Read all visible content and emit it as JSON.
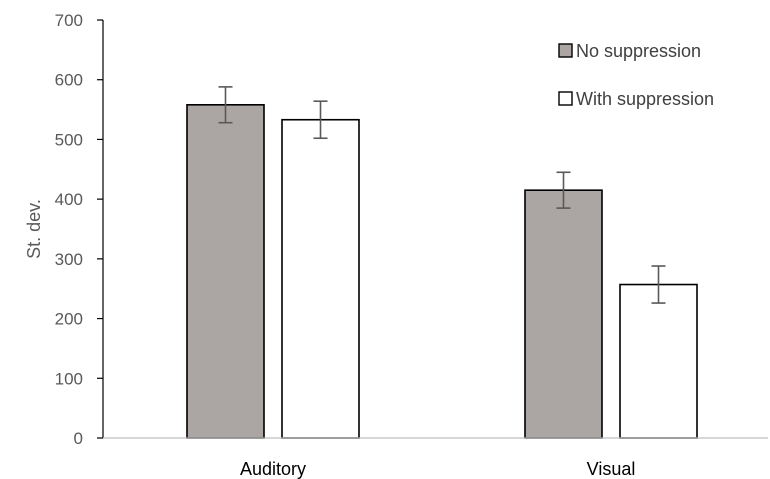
{
  "chart_data": {
    "type": "bar",
    "title": "",
    "xlabel": "",
    "ylabel": "St. dev.",
    "ylim": [
      0,
      700
    ],
    "yticks": [
      0,
      100,
      200,
      300,
      400,
      500,
      600,
      700
    ],
    "grid": false,
    "legend_position": "top-right",
    "categories": [
      "Auditory",
      "Visual"
    ],
    "series": [
      {
        "name": "No suppression",
        "color": "#aba5a3",
        "values": [
          558,
          415
        ],
        "error": [
          30,
          30
        ]
      },
      {
        "name": "With suppression",
        "color": "#ffffff",
        "values": [
          533,
          257
        ],
        "error": [
          31,
          31
        ]
      }
    ],
    "bar_border_color": "#000000",
    "errorbar_color": "#595959"
  }
}
